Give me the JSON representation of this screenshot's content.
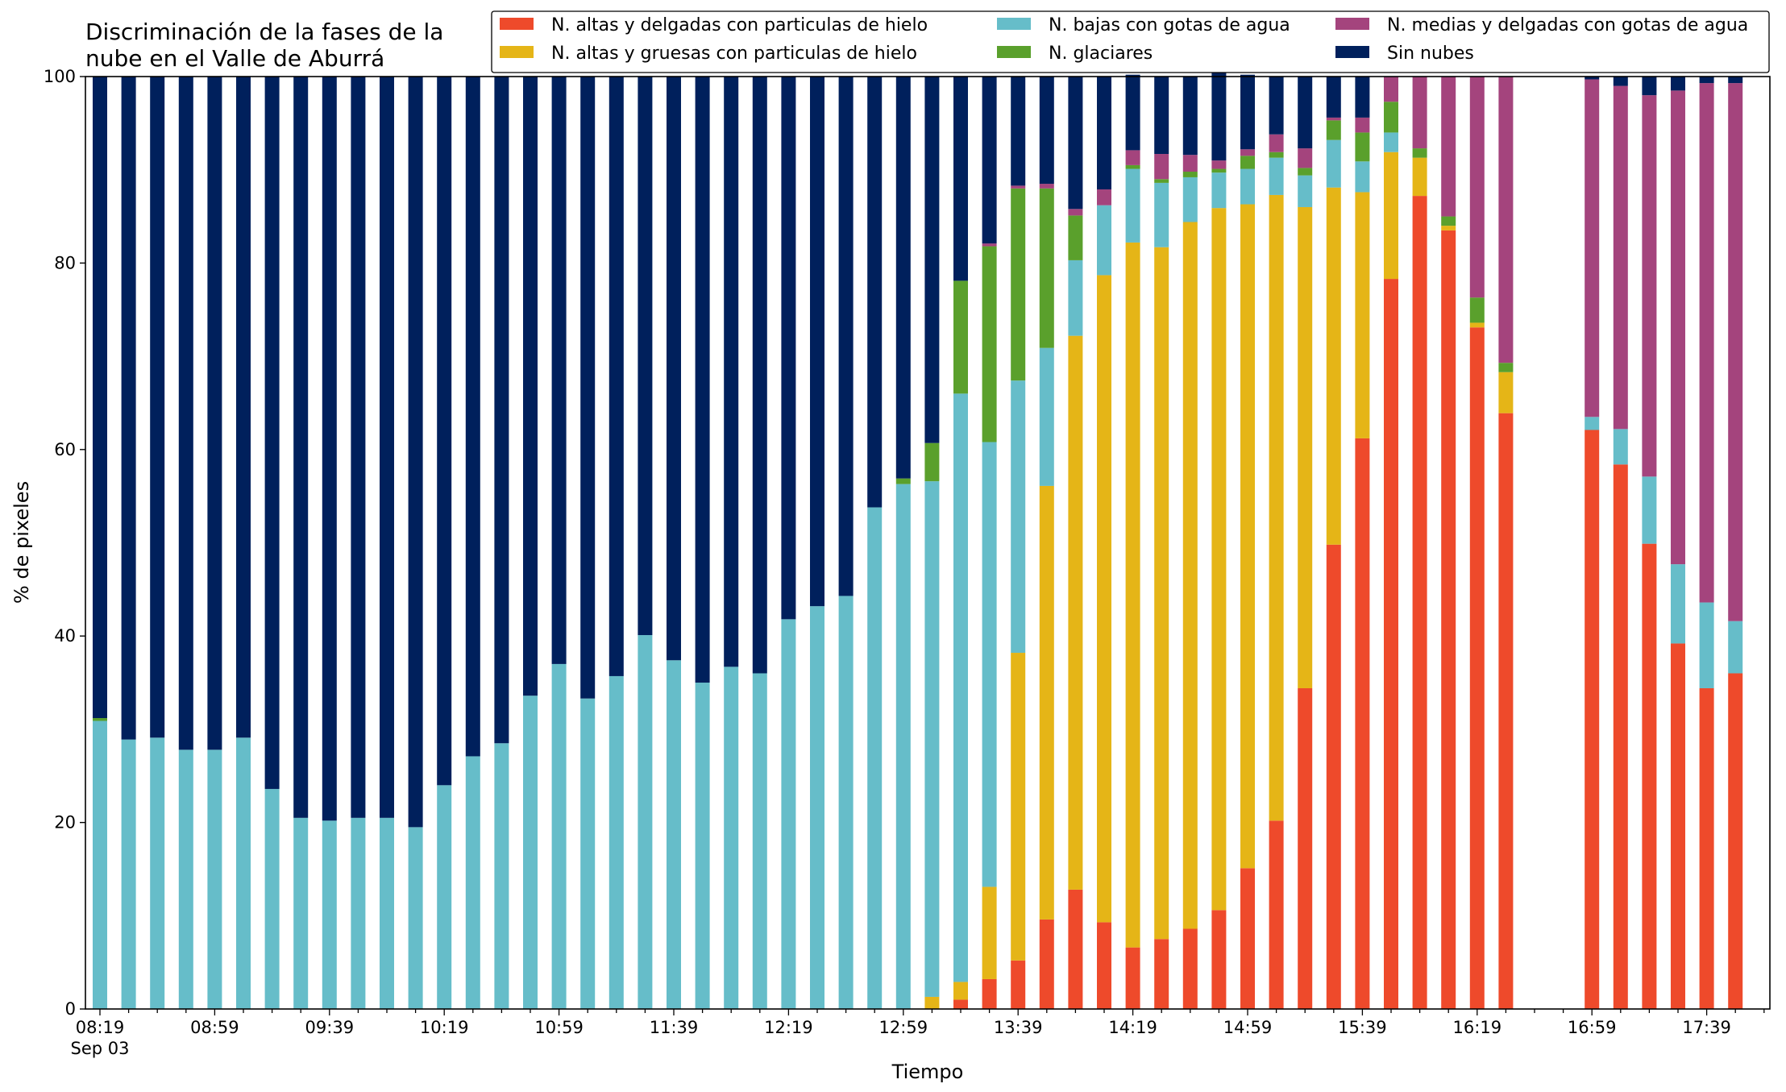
{
  "chart_data": {
    "type": "bar",
    "stacked": true,
    "title": [
      "Discriminación de la fases de la",
      "nube en el Valle de Aburrá"
    ],
    "xlabel": "Tiempo",
    "ylabel": "% de pixeles",
    "ylim": [
      0,
      100
    ],
    "yticks": [
      0,
      20,
      40,
      60,
      80,
      100
    ],
    "grid": false,
    "legend_position": "top-right",
    "legend_columns": 3,
    "interval_minutes": 10,
    "x_start": "08:19",
    "x_start_date": "Sep 03",
    "x_tick_labels": [
      {
        "label": "08:19",
        "sublabel": "Sep 03",
        "bar_index": 0
      },
      {
        "label": "08:59",
        "bar_index": 4
      },
      {
        "label": "09:39",
        "bar_index": 8
      },
      {
        "label": "10:19",
        "bar_index": 12
      },
      {
        "label": "10:59",
        "bar_index": 16
      },
      {
        "label": "11:39",
        "bar_index": 20
      },
      {
        "label": "12:19",
        "bar_index": 24
      },
      {
        "label": "12:59",
        "bar_index": 28
      },
      {
        "label": "13:39",
        "bar_index": 32
      },
      {
        "label": "14:19",
        "bar_index": 36
      },
      {
        "label": "14:59",
        "bar_index": 40
      },
      {
        "label": "15:39",
        "bar_index": 44
      },
      {
        "label": "16:19",
        "bar_index": 48
      },
      {
        "label": "16:59",
        "bar_index": 52
      },
      {
        "label": "17:39",
        "bar_index": 56
      }
    ],
    "times": [
      "08:19",
      "08:29",
      "08:39",
      "08:49",
      "08:59",
      "09:09",
      "09:19",
      "09:29",
      "09:39",
      "09:49",
      "09:59",
      "10:09",
      "10:19",
      "10:29",
      "10:39",
      "10:49",
      "10:59",
      "11:09",
      "11:19",
      "11:29",
      "11:39",
      "11:49",
      "11:59",
      "12:09",
      "12:19",
      "12:29",
      "12:39",
      "12:49",
      "12:59",
      "13:09",
      "13:19",
      "13:29",
      "13:39",
      "13:49",
      "13:59",
      "14:09",
      "14:19",
      "14:29",
      "14:39",
      "14:49",
      "14:59",
      "15:09",
      "15:19",
      "15:29",
      "15:39",
      "15:49",
      "15:59",
      "16:09",
      "16:19",
      "16:29",
      "16:39",
      "16:49",
      "16:59",
      "17:09",
      "17:19",
      "17:29",
      "17:39",
      "17:49"
    ],
    "series": [
      {
        "name": "N. altas y delgadas con particulas de hielo",
        "color": "#ee4a2b",
        "values": [
          0,
          0,
          0,
          0,
          0,
          0,
          0,
          0,
          0,
          0,
          0,
          0,
          0,
          0,
          0,
          0,
          0,
          0,
          0,
          0,
          0,
          0,
          0,
          0,
          0,
          0,
          0,
          0,
          0,
          0,
          1,
          3.2,
          5.2,
          9.6,
          12.8,
          9.3,
          6.6,
          7.5,
          8.6,
          10.6,
          15.1,
          20.2,
          34.4,
          49.8,
          61.2,
          78.3,
          87.2,
          83.5,
          73.1,
          63.9,
          null,
          null,
          62.1,
          58.4,
          49.9,
          39.2,
          34.4,
          36
        ]
      },
      {
        "name": "N. altas y gruesas con particulas de hielo",
        "color": "#e5b517",
        "values": [
          0,
          0,
          0,
          0,
          0,
          0,
          0,
          0,
          0,
          0,
          0,
          0,
          0,
          0,
          0,
          0,
          0,
          0,
          0,
          0,
          0,
          0,
          0,
          0,
          0,
          0,
          0,
          0,
          0,
          1.3,
          1.9,
          9.9,
          33,
          46.5,
          59.4,
          69.4,
          75.6,
          74.2,
          75.8,
          75.3,
          71.2,
          67.1,
          51.6,
          38.3,
          26.4,
          13.6,
          4.1,
          0.5,
          0.5,
          4.4,
          null,
          null,
          0,
          0,
          0,
          0,
          0,
          0
        ]
      },
      {
        "name": "N. bajas con gotas de agua",
        "color": "#66bdc9",
        "values": [
          30.9,
          28.9,
          29.1,
          27.8,
          27.8,
          29.1,
          23.6,
          20.5,
          20.2,
          20.5,
          20.5,
          19.5,
          24,
          27.1,
          28.5,
          33.6,
          37,
          33.3,
          35.7,
          40.1,
          37.4,
          35,
          36.7,
          36,
          41.8,
          43.2,
          44.3,
          53.8,
          56.3,
          55.3,
          63.1,
          47.7,
          29.2,
          14.8,
          8.1,
          7.5,
          7.9,
          6.9,
          4.8,
          3.8,
          3.8,
          4,
          3.4,
          5.1,
          3.3,
          2.1,
          0,
          0,
          0,
          0,
          null,
          null,
          1.4,
          3.8,
          7.2,
          8.5,
          9.2,
          5.6
        ]
      },
      {
        "name": "N. glaciares",
        "color": "#5aa02c",
        "values": [
          0.3,
          0,
          0,
          0,
          0,
          0,
          0,
          0,
          0,
          0,
          0,
          0,
          0,
          0,
          0,
          0,
          0,
          0,
          0,
          0,
          0,
          0,
          0,
          0,
          0,
          0,
          0,
          0,
          0.6,
          4.1,
          12.1,
          21,
          20.6,
          17.1,
          4.8,
          0,
          0.4,
          0.4,
          0.6,
          0.4,
          1.4,
          0.6,
          0.8,
          2.1,
          3.1,
          3.3,
          1,
          1,
          2.7,
          1,
          null,
          null,
          0,
          0,
          0,
          0,
          0,
          0
        ]
      },
      {
        "name": "N. medias y delgadas con gotas de agua",
        "color": "#a4447d",
        "values": [
          0,
          0,
          0,
          0,
          0,
          0,
          0,
          0,
          0,
          0,
          0,
          0,
          0,
          0,
          0,
          0,
          0,
          0,
          0,
          0,
          0,
          0,
          0,
          0,
          0,
          0,
          0,
          0,
          0,
          0,
          0,
          0.3,
          0.3,
          0.5,
          0.7,
          1.7,
          1.6,
          2.7,
          1.8,
          0.9,
          0.7,
          1.9,
          2.1,
          0.3,
          1.6,
          2.7,
          7.7,
          15,
          23.7,
          30.7,
          null,
          null,
          36.2,
          36.8,
          40.9,
          50.8,
          55.7,
          57.7
        ]
      },
      {
        "name": "Sin nubes",
        "color": "#00205c",
        "values": [
          68.8,
          71.1,
          70.9,
          72.2,
          72.2,
          70.9,
          76.4,
          79.5,
          79.8,
          79.5,
          79.5,
          80.5,
          76,
          72.9,
          71.5,
          66.4,
          63,
          66.7,
          64.3,
          59.9,
          62.6,
          65,
          63.3,
          64,
          58.2,
          56.8,
          55.7,
          46.2,
          43.1,
          39.3,
          21.9,
          17.9,
          11.7,
          11.5,
          14.2,
          12.1,
          8.1,
          8.3,
          8.4,
          9.6,
          8,
          6.2,
          7.7,
          4.4,
          4.4,
          0,
          0,
          0,
          0,
          0,
          null,
          null,
          0.3,
          1,
          2,
          1.5,
          0.7,
          0.7
        ]
      }
    ]
  }
}
